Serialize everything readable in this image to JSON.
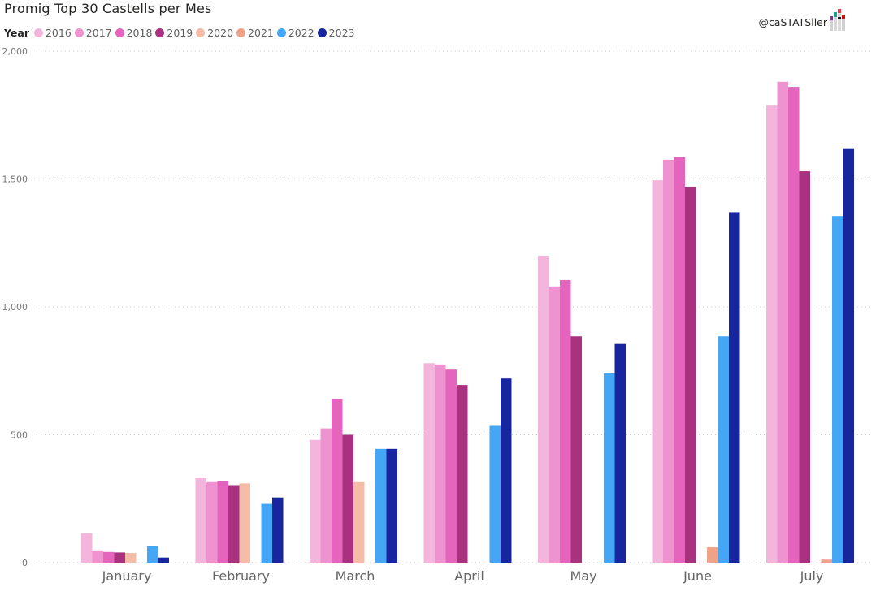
{
  "title": "Promig Top 30 Castells per Mes",
  "credit": "@caSTATSller",
  "legend": {
    "title": "Year"
  },
  "colors": {
    "2016": "#f3b5dc",
    "2017": "#ef92d0",
    "2018": "#e564be",
    "2019": "#a8327f",
    "2020": "#f5bda8",
    "2021": "#efa287",
    "2022": "#45a6f5",
    "2023": "#17259e"
  },
  "chart_data": {
    "type": "bar",
    "title": "Promig Top 30 Castells per Mes",
    "categories": [
      "January",
      "February",
      "March",
      "April",
      "May",
      "June",
      "July"
    ],
    "legend_title": "Year",
    "legend_position": "top-left",
    "ylim": [
      0,
      2000
    ],
    "yticks": [
      0,
      500,
      1000,
      1500,
      2000
    ],
    "ytick_labels": [
      "0",
      "500",
      "1,000",
      "1,500",
      "2,000"
    ],
    "grid": true,
    "series": [
      {
        "name": "2016",
        "values": [
          115,
          330,
          480,
          780,
          1200,
          1495,
          1790
        ]
      },
      {
        "name": "2017",
        "values": [
          45,
          315,
          525,
          775,
          1080,
          1575,
          1880
        ]
      },
      {
        "name": "2018",
        "values": [
          42,
          320,
          640,
          755,
          1105,
          1585,
          1860
        ]
      },
      {
        "name": "2019",
        "values": [
          40,
          300,
          500,
          695,
          885,
          1470,
          1530
        ]
      },
      {
        "name": "2020",
        "values": [
          38,
          310,
          315,
          null,
          null,
          null,
          null
        ]
      },
      {
        "name": "2021",
        "values": [
          null,
          null,
          null,
          null,
          null,
          60,
          12
        ]
      },
      {
        "name": "2022",
        "values": [
          65,
          230,
          445,
          535,
          740,
          885,
          1355
        ]
      },
      {
        "name": "2023",
        "values": [
          20,
          255,
          445,
          720,
          855,
          1370,
          1620
        ]
      }
    ]
  }
}
